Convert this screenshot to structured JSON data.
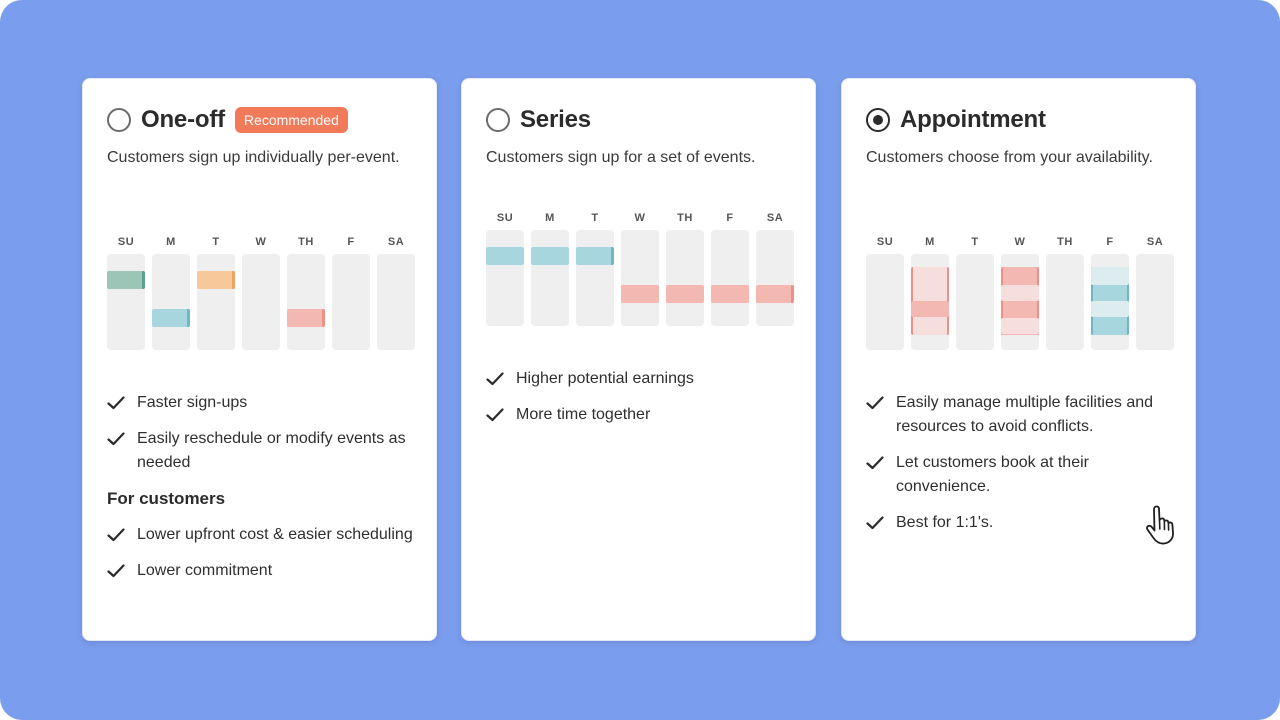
{
  "cards": [
    {
      "title": "One-off",
      "badge": "Recommended",
      "selected": false,
      "description": "Customers sign up individually per-event.",
      "days": [
        "SU",
        "M",
        "T",
        "W",
        "TH",
        "F",
        "SA"
      ],
      "benefits": [
        "Faster sign-ups",
        "Easily reschedule or modify events as needed"
      ],
      "customers_heading": "For customers",
      "customer_benefits": [
        "Lower upfront cost & easier scheduling",
        "Lower commitment"
      ]
    },
    {
      "title": "Series",
      "selected": false,
      "description": "Customers sign up for a set of events.",
      "days": [
        "SU",
        "M",
        "T",
        "W",
        "TH",
        "F",
        "SA"
      ],
      "benefits": [
        "Higher potential earnings",
        "More time together"
      ]
    },
    {
      "title": "Appointment",
      "selected": true,
      "description": "Customers choose from your availability.",
      "days": [
        "SU",
        "M",
        "T",
        "W",
        "TH",
        "F",
        "SA"
      ],
      "benefits": [
        "Easily manage multiple facilities and resources to avoid conflicts.",
        "Let customers book at their convenience.",
        "Best for 1:1's."
      ]
    }
  ],
  "colors": {
    "background": "#7b9ded",
    "badge": "#f07a5a",
    "green": "#9cc5b8",
    "blue": "#a8d6de",
    "orange": "#f7c89a",
    "pink": "#f2b8b1"
  },
  "icons": [
    "check-icon",
    "radio-icon",
    "pointer-hand-icon"
  ]
}
